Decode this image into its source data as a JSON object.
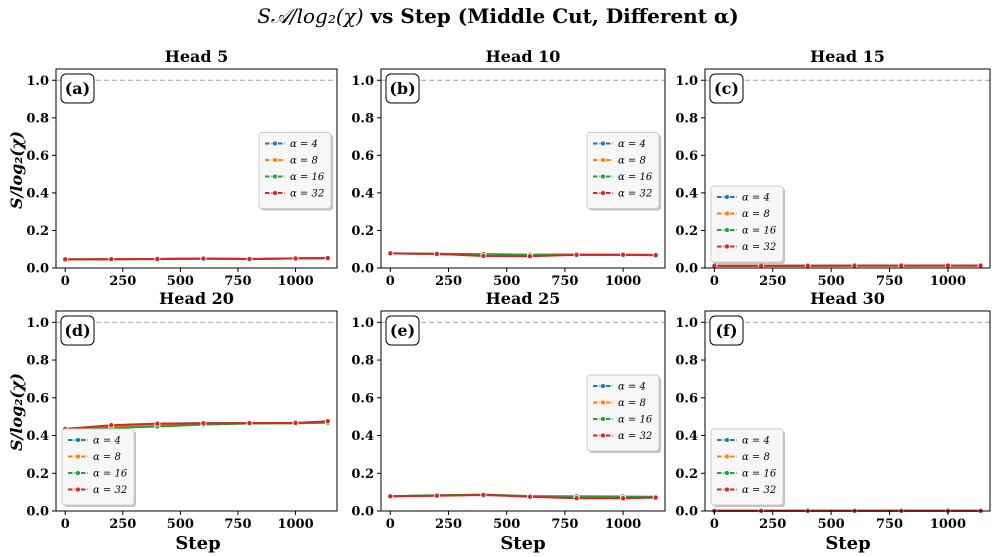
{
  "figure": {
    "title_math": "S𝒜/log₂(χ)",
    "title_text": "vs Step (Middle Cut, Different α)",
    "xlabel": "Step",
    "ylabel": "S/log₂(χ)"
  },
  "colors": {
    "alpha_4": "#1f77b4",
    "alpha_8": "#ff7f0e",
    "alpha_16": "#2ca02c",
    "alpha_32": "#d62728"
  },
  "chart_data": [
    {
      "type": "line",
      "panel": "(a)",
      "title": "Head 5",
      "legend_loc": "center-right",
      "x": [
        0,
        200,
        400,
        600,
        800,
        1000,
        1140
      ],
      "xticks": [
        0,
        250,
        500,
        750,
        1000
      ],
      "yticks": [
        0.0,
        0.2,
        0.4,
        0.6,
        0.8,
        1.0
      ],
      "xlim": [
        -40,
        1180
      ],
      "ylim": [
        0,
        1.06
      ],
      "reference_line": 1.0,
      "series": [
        {
          "name": "α = 4",
          "values": [
            0.046,
            0.047,
            0.048,
            0.05,
            0.048,
            0.051,
            0.053
          ]
        },
        {
          "name": "α = 8",
          "values": [
            0.046,
            0.047,
            0.048,
            0.05,
            0.048,
            0.051,
            0.053
          ]
        },
        {
          "name": "α = 16",
          "values": [
            0.046,
            0.047,
            0.048,
            0.05,
            0.048,
            0.051,
            0.053
          ]
        },
        {
          "name": "α = 32",
          "values": [
            0.046,
            0.047,
            0.048,
            0.05,
            0.048,
            0.051,
            0.053
          ]
        }
      ]
    },
    {
      "type": "line",
      "panel": "(b)",
      "title": "Head 10",
      "legend_loc": "center-right",
      "x": [
        0,
        200,
        400,
        600,
        800,
        1000,
        1140
      ],
      "xticks": [
        0,
        250,
        500,
        750,
        1000
      ],
      "yticks": [
        0.0,
        0.2,
        0.4,
        0.6,
        0.8,
        1.0
      ],
      "xlim": [
        -40,
        1180
      ],
      "ylim": [
        0,
        1.06
      ],
      "reference_line": 1.0,
      "series": [
        {
          "name": "α = 4",
          "values": [
            0.078,
            0.074,
            0.07,
            0.07,
            0.071,
            0.07,
            0.069
          ]
        },
        {
          "name": "α = 8",
          "values": [
            0.078,
            0.075,
            0.071,
            0.07,
            0.071,
            0.071,
            0.069
          ]
        },
        {
          "name": "α = 16",
          "values": [
            0.078,
            0.076,
            0.074,
            0.071,
            0.072,
            0.071,
            0.07
          ]
        },
        {
          "name": "α = 32",
          "values": [
            0.078,
            0.075,
            0.064,
            0.063,
            0.07,
            0.07,
            0.068
          ]
        }
      ]
    },
    {
      "type": "line",
      "panel": "(c)",
      "title": "Head 15",
      "legend_loc": "lower-left",
      "x": [
        0,
        200,
        400,
        600,
        800,
        1000,
        1140
      ],
      "xticks": [
        0,
        250,
        500,
        750,
        1000
      ],
      "yticks": [
        0.0,
        0.2,
        0.4,
        0.6,
        0.8,
        1.0
      ],
      "xlim": [
        -40,
        1180
      ],
      "ylim": [
        0,
        1.06
      ],
      "reference_line": 1.0,
      "series": [
        {
          "name": "α = 4",
          "values": [
            0.012,
            0.012,
            0.012,
            0.013,
            0.013,
            0.013,
            0.013
          ]
        },
        {
          "name": "α = 8",
          "values": [
            0.012,
            0.012,
            0.012,
            0.013,
            0.013,
            0.013,
            0.013
          ]
        },
        {
          "name": "α = 16",
          "values": [
            0.012,
            0.012,
            0.012,
            0.013,
            0.013,
            0.013,
            0.013
          ]
        },
        {
          "name": "α = 32",
          "values": [
            0.012,
            0.012,
            0.012,
            0.013,
            0.013,
            0.013,
            0.013
          ]
        }
      ]
    },
    {
      "type": "line",
      "panel": "(d)",
      "title": "Head 20",
      "legend_loc": "lower-left",
      "x": [
        0,
        200,
        400,
        600,
        800,
        1000,
        1140
      ],
      "xticks": [
        0,
        250,
        500,
        750,
        1000
      ],
      "yticks": [
        0.0,
        0.2,
        0.4,
        0.6,
        0.8,
        1.0
      ],
      "xlim": [
        -40,
        1180
      ],
      "ylim": [
        0,
        1.06
      ],
      "reference_line": 1.0,
      "series": [
        {
          "name": "α = 4",
          "values": [
            0.435,
            0.45,
            0.462,
            0.466,
            0.466,
            0.466,
            0.472
          ]
        },
        {
          "name": "α = 8",
          "values": [
            0.435,
            0.448,
            0.458,
            0.463,
            0.465,
            0.465,
            0.47
          ]
        },
        {
          "name": "α = 16",
          "values": [
            0.435,
            0.44,
            0.448,
            0.458,
            0.464,
            0.465,
            0.468
          ]
        },
        {
          "name": "α = 32",
          "values": [
            0.435,
            0.455,
            0.463,
            0.465,
            0.466,
            0.467,
            0.476
          ]
        }
      ]
    },
    {
      "type": "line",
      "panel": "(e)",
      "title": "Head 25",
      "legend_loc": "center-right",
      "x": [
        0,
        200,
        400,
        600,
        800,
        1000,
        1140
      ],
      "xticks": [
        0,
        250,
        500,
        750,
        1000
      ],
      "yticks": [
        0.0,
        0.2,
        0.4,
        0.6,
        0.8,
        1.0
      ],
      "xlim": [
        -40,
        1180
      ],
      "ylim": [
        0,
        1.06
      ],
      "reference_line": 1.0,
      "series": [
        {
          "name": "α = 4",
          "values": [
            0.078,
            0.082,
            0.086,
            0.078,
            0.074,
            0.072,
            0.073
          ]
        },
        {
          "name": "α = 8",
          "values": [
            0.078,
            0.082,
            0.086,
            0.078,
            0.075,
            0.073,
            0.073
          ]
        },
        {
          "name": "α = 16",
          "values": [
            0.078,
            0.083,
            0.087,
            0.079,
            0.078,
            0.077,
            0.075
          ]
        },
        {
          "name": "α = 32",
          "values": [
            0.078,
            0.081,
            0.085,
            0.076,
            0.068,
            0.068,
            0.071
          ]
        }
      ]
    },
    {
      "type": "line",
      "panel": "(f)",
      "title": "Head 30",
      "legend_loc": "lower-left",
      "x": [
        0,
        200,
        400,
        600,
        800,
        1000,
        1140
      ],
      "xticks": [
        0,
        250,
        500,
        750,
        1000
      ],
      "yticks": [
        0.0,
        0.2,
        0.4,
        0.6,
        0.8,
        1.0
      ],
      "xlim": [
        -40,
        1180
      ],
      "ylim": [
        0,
        1.06
      ],
      "reference_line": 1.0,
      "series": [
        {
          "name": "α = 4",
          "values": [
            0.001,
            0.001,
            0.001,
            0.001,
            0.001,
            0.001,
            0.001
          ]
        },
        {
          "name": "α = 8",
          "values": [
            0.001,
            0.001,
            0.001,
            0.001,
            0.001,
            0.001,
            0.001
          ]
        },
        {
          "name": "α = 16",
          "values": [
            0.001,
            0.001,
            0.001,
            0.001,
            0.001,
            0.001,
            0.001
          ]
        },
        {
          "name": "α = 32",
          "values": [
            0.001,
            0.001,
            0.001,
            0.001,
            0.001,
            0.001,
            0.001
          ]
        }
      ]
    }
  ]
}
